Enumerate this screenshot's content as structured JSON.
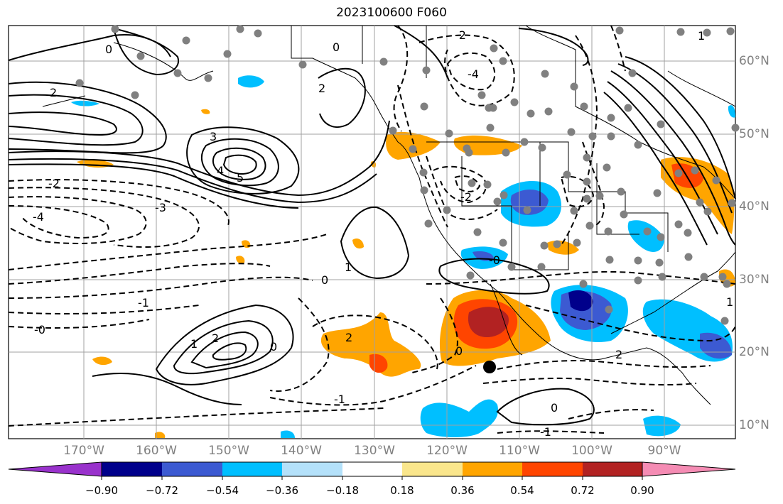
{
  "title": "2023100600 F060",
  "lat_labels": [
    "60°N",
    "50°N",
    "40°N",
    "30°N",
    "20°N",
    "10°N"
  ],
  "lon_labels": [
    "170°W",
    "160°W",
    "150°W",
    "140°W",
    "130°W",
    "120°W",
    "110°W",
    "100°W",
    "90°W"
  ],
  "colorbar": {
    "tick_labels": [
      "−0.90",
      "−0.72",
      "−0.54",
      "−0.36",
      "−0.18",
      "0.18",
      "0.36",
      "0.54",
      "0.72",
      "0.90"
    ],
    "colors": [
      "#9932cc",
      "#00008b",
      "#3c5ad2",
      "#00bfff",
      "#b4e1fa",
      "#ffffff",
      "#fae68c",
      "#ffa500",
      "#ff4500",
      "#b22222",
      "#f58cb4"
    ]
  },
  "contour_labels": [
    "0",
    "2",
    "4",
    "5",
    "3",
    "2",
    "1",
    "0",
    "-2",
    "-4",
    "-3",
    "1",
    "2",
    "-1",
    "-0",
    "0",
    "2",
    "0",
    "1",
    "0",
    "-1",
    "0",
    "-2",
    "-0",
    "-4",
    "-2",
    "1",
    "2",
    "-1"
  ],
  "colors": {
    "line": "#000000",
    "grid": "#a0a0a0",
    "coast": "#000000",
    "station": "#808080",
    "marker": "#000000"
  }
}
